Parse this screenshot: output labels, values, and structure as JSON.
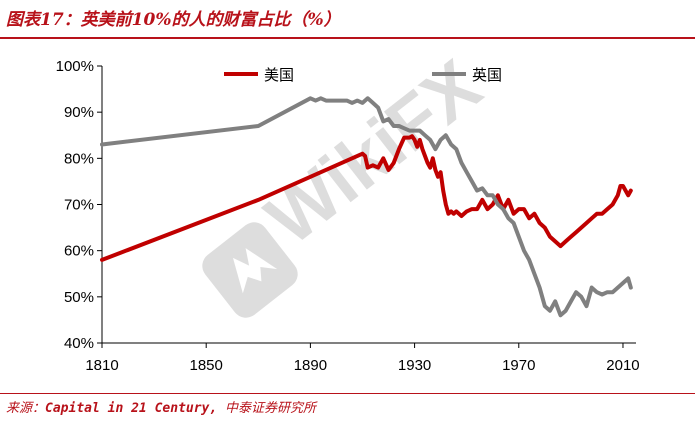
{
  "header": {
    "title": "图表17：英美前10%的人的财富占比（%）"
  },
  "footer": {
    "source_label": "来源：",
    "source_en": "Capital in 21 Century,",
    "source_cn": " 中泰证券研究所"
  },
  "watermark": {
    "text": "WikiFX"
  },
  "colors": {
    "accent": "#b8121a",
    "us": "#c00000",
    "uk": "#808080"
  },
  "chart_data": {
    "type": "line",
    "title": "",
    "xlabel": "",
    "ylabel": "",
    "xlim": [
      1810,
      2015
    ],
    "ylim": [
      40,
      100
    ],
    "x_ticks": [
      1810,
      1850,
      1890,
      1930,
      1970,
      2010
    ],
    "x_tick_labels": [
      "1810",
      "1850",
      "1890",
      "1930",
      "1970",
      "2010"
    ],
    "y_ticks": [
      40,
      50,
      60,
      70,
      80,
      90,
      100
    ],
    "y_tick_labels": [
      "40%",
      "50%",
      "60%",
      "70%",
      "80%",
      "90%",
      "100%"
    ],
    "grid": false,
    "legend": {
      "placement": "top"
    },
    "series": [
      {
        "name": "美国",
        "color": "#c00000",
        "x": [
          1810,
          1870,
          1910,
          1911,
          1912,
          1914,
          1916,
          1918,
          1920,
          1922,
          1924,
          1926,
          1928,
          1929,
          1930,
          1931,
          1932,
          1933,
          1934,
          1935,
          1936,
          1937,
          1938,
          1939,
          1940,
          1941,
          1942,
          1943,
          1944,
          1945,
          1946,
          1948,
          1950,
          1952,
          1954,
          1956,
          1958,
          1960,
          1962,
          1964,
          1966,
          1968,
          1970,
          1972,
          1974,
          1976,
          1978,
          1980,
          1982,
          1984,
          1986,
          1988,
          1990,
          1992,
          1994,
          1996,
          1998,
          2000,
          2002,
          2004,
          2006,
          2007,
          2008,
          2009,
          2010,
          2011,
          2012,
          2013
        ],
        "values": [
          58,
          71,
          81,
          80.5,
          78,
          78.5,
          78,
          80,
          77.5,
          79,
          82,
          84.5,
          84.5,
          84.8,
          84,
          82.5,
          84,
          82,
          80.5,
          79,
          78,
          80,
          77.5,
          76,
          77,
          73,
          70,
          68,
          68.5,
          68,
          68.5,
          67.5,
          68.5,
          69,
          69,
          71,
          69,
          70,
          72,
          69,
          71,
          68,
          69,
          69,
          67,
          68,
          66,
          65,
          63,
          62,
          61,
          62,
          63,
          64,
          65,
          66,
          67,
          68,
          68,
          69,
          70,
          71,
          72,
          74,
          74,
          73,
          72,
          73
        ]
      },
      {
        "name": "英国",
        "color": "#808080",
        "x": [
          1810,
          1870,
          1890,
          1892,
          1894,
          1896,
          1898,
          1900,
          1902,
          1904,
          1906,
          1908,
          1910,
          1912,
          1914,
          1916,
          1918,
          1920,
          1922,
          1924,
          1926,
          1928,
          1930,
          1932,
          1934,
          1936,
          1938,
          1940,
          1942,
          1944,
          1946,
          1948,
          1950,
          1952,
          1954,
          1956,
          1958,
          1960,
          1962,
          1964,
          1966,
          1968,
          1970,
          1972,
          1974,
          1976,
          1978,
          1980,
          1982,
          1984,
          1986,
          1988,
          1990,
          1992,
          1994,
          1996,
          1998,
          2000,
          2002,
          2004,
          2006,
          2008,
          2010,
          2012,
          2013
        ],
        "values": [
          83,
          87,
          93,
          92.5,
          93,
          92.5,
          92.5,
          92.5,
          92.5,
          92.5,
          92,
          92.5,
          92,
          93,
          92,
          91,
          88,
          88.5,
          87,
          87,
          86.5,
          86,
          86,
          86,
          85,
          84,
          82,
          84,
          85,
          83,
          82,
          79,
          77,
          75,
          73,
          73.5,
          72,
          72,
          70,
          69,
          67,
          66,
          63,
          60,
          58,
          55,
          52,
          48,
          47,
          49,
          46,
          47,
          49,
          51,
          50,
          48,
          52,
          51,
          50.5,
          51,
          51,
          52,
          53,
          54,
          52
        ]
      }
    ]
  }
}
